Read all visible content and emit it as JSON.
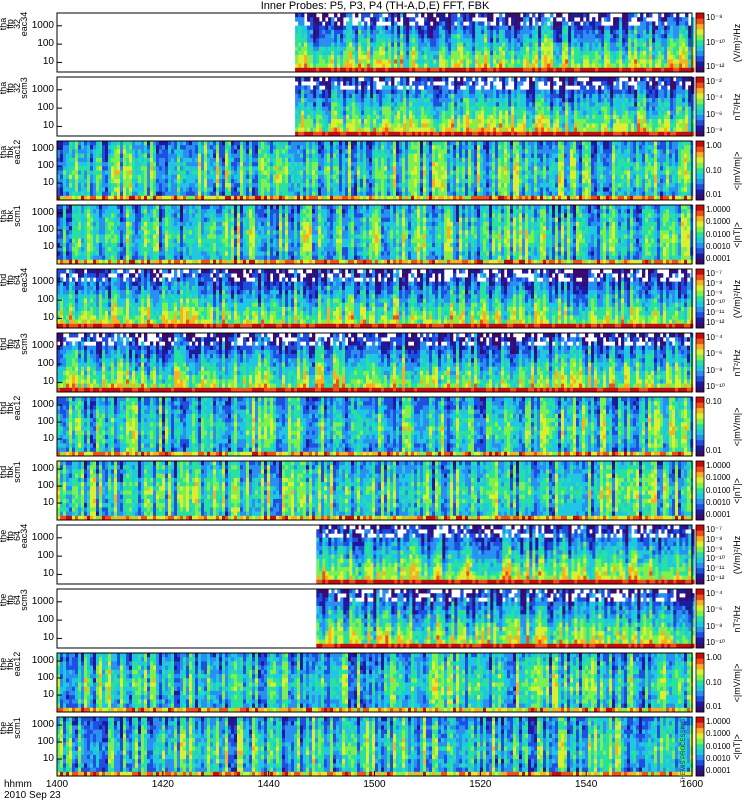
{
  "title": "Inner Probes: P5, P3, P4 (TH-A,D,E) FFT, FBK",
  "colors": {
    "colormap": [
      "#3a0a6e",
      "#1d1a9e",
      "#1f4fe0",
      "#2a8ff2",
      "#1fc8e0",
      "#28e0a0",
      "#7cf050",
      "#d8f030",
      "#f8b020",
      "#f05018",
      "#c80c0c"
    ],
    "empty": "#ffffff"
  },
  "xaxis": {
    "label_lines": [
      "hhmm",
      "2010 Sep 23"
    ],
    "ticks": [
      "1400",
      "1420",
      "1440",
      "1500",
      "1520",
      "1540",
      "1600"
    ],
    "range_minutes": [
      0,
      120
    ]
  },
  "footnote": "THEMIS PROCESSING",
  "chart_data": [
    {
      "type": "heatmap",
      "probe": "tha",
      "panel": "ffp_32 eac34",
      "ylabel_lines": [
        "tha",
        "ffp",
        "32",
        "eac34"
      ],
      "yticks": [
        "1000",
        "100",
        "10"
      ],
      "ylog": [
        3,
        5000
      ],
      "zlabel": "(V/m)²/Hz",
      "zticks": [
        "10⁻⁸",
        "10⁻¹⁰",
        "10⁻¹²"
      ],
      "data_start_min": 45,
      "fill": 0.3
    },
    {
      "type": "heatmap",
      "probe": "tha",
      "panel": "ffp_32 scm3",
      "ylabel_lines": [
        "tha",
        "ffp",
        "32",
        "scm3"
      ],
      "yticks": [
        "1000",
        "100",
        "10"
      ],
      "ylog": [
        3,
        5000
      ],
      "zlabel": "nT²/Hz",
      "zticks": [
        "10⁻²",
        "10⁻⁴",
        "10⁻⁶",
        "10⁻⁸"
      ],
      "data_start_min": 45,
      "fill": 0.4
    },
    {
      "type": "heatmap",
      "probe": "tha",
      "panel": "fbk eac12",
      "ylabel_lines": [
        "tha",
        "fbk",
        "eac12"
      ],
      "yticks": [
        "1000",
        "100",
        "10"
      ],
      "ylog": [
        1,
        3000
      ],
      "zlabel": "<|mV/m|>",
      "zticks": [
        "1.00",
        "0.10",
        "0.01"
      ],
      "data_start_min": 0,
      "fill": 0.45
    },
    {
      "type": "heatmap",
      "probe": "tha",
      "panel": "fbk scm1",
      "ylabel_lines": [
        "tha",
        "fbk",
        "scm1"
      ],
      "yticks": [
        "1000",
        "100",
        "10"
      ],
      "ylog": [
        1,
        3000
      ],
      "zlabel": "<|nT|>",
      "zticks": [
        "1.0000",
        "0.1000",
        "0.0100",
        "0.0010",
        "0.0001"
      ],
      "data_start_min": 0,
      "fill": 0.35
    },
    {
      "type": "heatmap",
      "probe": "thd",
      "panel": "ffp_64 eac34",
      "ylabel_lines": [
        "thd",
        "ffp",
        "64",
        "eac34"
      ],
      "yticks": [
        "1000",
        "100",
        "10"
      ],
      "ylog": [
        3,
        5000
      ],
      "zlabel": "(V/m)²/Hz",
      "zticks": [
        "10⁻⁷",
        "10⁻⁸",
        "10⁻⁹",
        "10⁻¹⁰",
        "10⁻¹¹",
        "10⁻¹²"
      ],
      "data_start_min": 0,
      "fill": 0.3
    },
    {
      "type": "heatmap",
      "probe": "thd",
      "panel": "ffp_64 scm3",
      "ylabel_lines": [
        "thd",
        "ffp",
        "64",
        "scm3"
      ],
      "yticks": [
        "1000",
        "100",
        "10"
      ],
      "ylog": [
        3,
        5000
      ],
      "zlabel": "nT²/Hz",
      "zticks": [
        "10⁻⁴",
        "10⁻⁶",
        "10⁻⁸",
        "10⁻¹⁰"
      ],
      "data_start_min": 0,
      "fill": 0.4
    },
    {
      "type": "heatmap",
      "probe": "thd",
      "panel": "fbk eac12",
      "ylabel_lines": [
        "thd",
        "fbk",
        "eac12"
      ],
      "yticks": [
        "1000",
        "100",
        "10"
      ],
      "ylog": [
        1,
        3000
      ],
      "zlabel": "<|mV/m|>",
      "zticks": [
        "0.10",
        "0.01"
      ],
      "data_start_min": 0,
      "fill": 0.45
    },
    {
      "type": "heatmap",
      "probe": "thd",
      "panel": "fbk scm1",
      "ylabel_lines": [
        "thd",
        "fbk",
        "scm1"
      ],
      "yticks": [
        "1000",
        "100",
        "10"
      ],
      "ylog": [
        1,
        3000
      ],
      "zlabel": "<|nT|>",
      "zticks": [
        "1.0000",
        "0.1000",
        "0.0100",
        "0.0010",
        "0.0001"
      ],
      "data_start_min": 0,
      "fill": 0.35
    },
    {
      "type": "heatmap",
      "probe": "the",
      "panel": "ffp_64 eac34",
      "ylabel_lines": [
        "the",
        "ffp",
        "64",
        "eac34"
      ],
      "yticks": [
        "1000",
        "100",
        "10"
      ],
      "ylog": [
        3,
        5000
      ],
      "zlabel": "(V/m)²/Hz",
      "zticks": [
        "10⁻⁷",
        "10⁻⁸",
        "10⁻⁹",
        "10⁻¹⁰",
        "10⁻¹¹",
        "10⁻¹²"
      ],
      "data_start_min": 49,
      "fill": 0.3
    },
    {
      "type": "heatmap",
      "probe": "the",
      "panel": "ffp_64 scm3",
      "ylabel_lines": [
        "the",
        "ffp",
        "64",
        "scm3"
      ],
      "yticks": [
        "1000",
        "100",
        "10"
      ],
      "ylog": [
        3,
        5000
      ],
      "zlabel": "nT²/Hz",
      "zticks": [
        "10⁻⁴",
        "10⁻⁶",
        "10⁻⁸",
        "10⁻¹⁰"
      ],
      "data_start_min": 49,
      "fill": 0.4
    },
    {
      "type": "heatmap",
      "probe": "the",
      "panel": "fbk eac12",
      "ylabel_lines": [
        "the",
        "fbk",
        "eac12"
      ],
      "yticks": [
        "1000",
        "100",
        "10"
      ],
      "ylog": [
        1,
        3000
      ],
      "zlabel": "<|mV/m|>",
      "zticks": [
        "1.00",
        "0.10",
        "0.01"
      ],
      "data_start_min": 0,
      "fill": 0.45
    },
    {
      "type": "heatmap",
      "probe": "the",
      "panel": "fbk scm1",
      "ylabel_lines": [
        "the",
        "fbk",
        "scm1"
      ],
      "yticks": [
        "1000",
        "100",
        "10"
      ],
      "ylog": [
        1,
        3000
      ],
      "zlabel": "<|nT|>",
      "zticks": [
        "1.0000",
        "0.1000",
        "0.0100",
        "0.0010",
        "0.0001"
      ],
      "data_start_min": 0,
      "fill": 0.35
    }
  ]
}
